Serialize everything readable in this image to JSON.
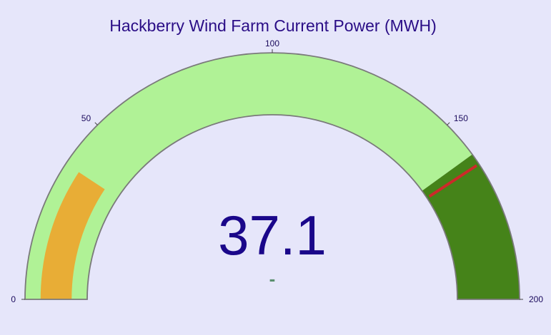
{
  "chart_data": {
    "type": "gauge",
    "title": "Hackberry Wind Farm Current Power (MWH)",
    "value": 37.1,
    "value_label": "37.1",
    "delta_label": "-",
    "range": [
      0,
      200
    ],
    "ticks": [
      0,
      50,
      100,
      150,
      200
    ],
    "tick_labels": [
      "0",
      "50",
      "100",
      "150",
      "200"
    ],
    "bar_value": 37.1,
    "steps": [
      {
        "from": 0,
        "to": 160,
        "color": "#b0f296"
      },
      {
        "from": 160,
        "to": 200,
        "color": "#458319"
      }
    ],
    "threshold": {
      "value": 163,
      "color": "#cc2a2a"
    }
  },
  "colors": {
    "background": "#e6e6fa",
    "title": "#2a0d86",
    "value": "#1a078a",
    "tick_label": "#1a0a5c",
    "bar": "#e8ad36",
    "gauge_border": "#7a7a7a",
    "delta": "#5a8f6e"
  }
}
